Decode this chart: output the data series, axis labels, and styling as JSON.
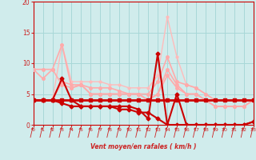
{
  "bg_color": "#d0ecec",
  "grid_color": "#a8d8d8",
  "xlabel": "Vent moyen/en rafales ( km/h )",
  "ylim": [
    0,
    20
  ],
  "xlim": [
    0,
    23
  ],
  "yticks": [
    0,
    5,
    10,
    15,
    20
  ],
  "xticks": [
    0,
    1,
    2,
    3,
    4,
    5,
    6,
    7,
    8,
    9,
    10,
    11,
    12,
    13,
    14,
    15,
    16,
    17,
    18,
    19,
    20,
    21,
    22,
    23
  ],
  "xticklabels": [
    "0",
    "1",
    "2",
    "3",
    "4",
    "5",
    "6",
    "7",
    "8",
    "9",
    "10",
    "11",
    "12",
    "13",
    "14",
    "15",
    "16",
    "17",
    "18",
    "19",
    "20",
    "21",
    "22",
    "23"
  ],
  "series": [
    {
      "x": [
        0,
        1,
        2,
        3,
        4,
        5,
        6,
        7,
        8,
        9,
        10,
        11,
        12,
        13,
        14,
        15,
        16,
        17,
        18,
        19,
        20,
        21,
        22,
        23
      ],
      "y": [
        4,
        4,
        4,
        13,
        7,
        7,
        7,
        7,
        6.5,
        6.5,
        6,
        6,
        6,
        8,
        17.5,
        11,
        6.5,
        6,
        5,
        4,
        4,
        4,
        4,
        4
      ],
      "color": "#ffbbbb",
      "lw": 1.0,
      "marker": "o",
      "ms": 2.0,
      "zorder": 2
    },
    {
      "x": [
        0,
        1,
        2,
        3,
        4,
        5,
        6,
        7,
        8,
        9,
        10,
        11,
        12,
        13,
        14,
        15,
        16,
        17,
        18,
        19,
        20,
        21,
        22,
        23
      ],
      "y": [
        9,
        9,
        9,
        13,
        6,
        6.5,
        5,
        5,
        5,
        5,
        5,
        5,
        4,
        5,
        9,
        6.5,
        5,
        5,
        4,
        3,
        3,
        3,
        3,
        4
      ],
      "color": "#ffaaaa",
      "lw": 1.2,
      "marker": "o",
      "ms": 2.5,
      "zorder": 3
    },
    {
      "x": [
        0,
        1,
        2,
        3,
        4,
        5,
        6,
        7,
        8,
        9,
        10,
        11,
        12,
        13,
        14,
        15,
        16,
        17,
        18,
        19,
        20,
        21,
        22,
        23
      ],
      "y": [
        9,
        7.5,
        9,
        6.5,
        6,
        6.5,
        5,
        5,
        5,
        5,
        5,
        5,
        4,
        5,
        8,
        6,
        5,
        5,
        4,
        3,
        3,
        3,
        3,
        4
      ],
      "color": "#ffaaaa",
      "lw": 1.2,
      "marker": "o",
      "ms": 2.5,
      "zorder": 3
    },
    {
      "x": [
        0,
        1,
        2,
        3,
        4,
        5,
        6,
        7,
        8,
        9,
        10,
        11,
        12,
        13,
        14,
        15,
        16,
        17,
        18,
        19,
        20,
        21,
        22,
        23
      ],
      "y": [
        4,
        4,
        4,
        7,
        6.5,
        6.5,
        6,
        6,
        6,
        5.5,
        5,
        5,
        5,
        7,
        11,
        7,
        6.5,
        6,
        5,
        4,
        4,
        4,
        4,
        4
      ],
      "color": "#ffaaaa",
      "lw": 1.2,
      "marker": "o",
      "ms": 2.5,
      "zorder": 3
    },
    {
      "x": [
        0,
        1,
        2,
        3,
        4,
        5,
        6,
        7,
        8,
        9,
        10,
        11,
        12,
        13,
        14,
        15,
        16,
        17,
        18,
        19,
        20,
        21,
        22,
        23
      ],
      "y": [
        4,
        4,
        4,
        4,
        4,
        4,
        4,
        4,
        4,
        4,
        4,
        4,
        4,
        4,
        4,
        4,
        4,
        4,
        4,
        4,
        4,
        4,
        4,
        4
      ],
      "color": "#cc0000",
      "lw": 2.0,
      "marker": "s",
      "ms": 3,
      "zorder": 5
    },
    {
      "x": [
        0,
        1,
        2,
        3,
        4,
        5,
        6,
        7,
        8,
        9,
        10,
        11,
        12,
        13,
        14,
        15,
        16,
        17,
        18,
        19,
        20,
        21,
        22,
        23
      ],
      "y": [
        4,
        4,
        4,
        3.5,
        3,
        3,
        3,
        3,
        3,
        2.5,
        2.5,
        2,
        2,
        1,
        0,
        0,
        0,
        0,
        0,
        0,
        0,
        0,
        0,
        0.5
      ],
      "color": "#cc0000",
      "lw": 1.5,
      "marker": "D",
      "ms": 2.5,
      "zorder": 5
    },
    {
      "x": [
        0,
        1,
        2,
        3,
        4,
        5,
        6,
        7,
        8,
        9,
        10,
        11,
        12,
        13,
        14,
        15,
        16,
        17,
        18,
        19,
        20,
        21,
        22,
        23
      ],
      "y": [
        4,
        4,
        4,
        7.5,
        4,
        3,
        3,
        3,
        3,
        3,
        3,
        2.5,
        1,
        11.5,
        0,
        5,
        0,
        0,
        0,
        0,
        0,
        0,
        0,
        0.5
      ],
      "color": "#cc0000",
      "lw": 1.5,
      "marker": "D",
      "ms": 2.5,
      "zorder": 5
    }
  ],
  "arrow_color": "#cc2222",
  "spine_color": "#cc0000"
}
